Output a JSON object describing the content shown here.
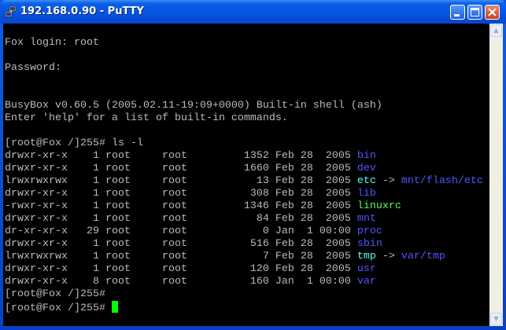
{
  "window": {
    "title": "192.168.0.90 - PuTTY"
  },
  "colors": {
    "default": "#bbbbbb",
    "dir": "#5555ff",
    "link": "#55ffff",
    "exec": "#55ff55",
    "cursor": "#00ff00"
  },
  "terminal": {
    "lines": [
      [],
      [
        {
          "t": "Fox login: root"
        }
      ],
      [],
      [
        {
          "t": "Password:"
        }
      ],
      [],
      [],
      [
        {
          "t": "BusyBox v0.60.5 (2005.02.11-19:09+0000) Built-in shell (ash)"
        }
      ],
      [
        {
          "t": "Enter 'help' for a list of built-in commands."
        }
      ],
      [],
      [
        {
          "t": "[root@Fox /]255# ls -l"
        }
      ],
      [
        {
          "t": "drwxr-xr-x    1 root     root         1352 Feb 28  2005 "
        },
        {
          "t": "bin",
          "c": "dir"
        }
      ],
      [
        {
          "t": "drwxr-xr-x    1 root     root         1660 Feb 28  2005 "
        },
        {
          "t": "dev",
          "c": "dir"
        }
      ],
      [
        {
          "t": "lrwxrwxrwx    1 root     root           13 Feb 28  2005 "
        },
        {
          "t": "etc",
          "c": "link"
        },
        {
          "t": " -> "
        },
        {
          "t": "mnt/flash/etc",
          "c": "dir"
        }
      ],
      [
        {
          "t": "drwxr-xr-x    1 root     root          308 Feb 28  2005 "
        },
        {
          "t": "lib",
          "c": "dir"
        }
      ],
      [
        {
          "t": "-rwxr-xr-x    1 root     root         1346 Feb 28  2005 "
        },
        {
          "t": "linuxrc",
          "c": "exec"
        }
      ],
      [
        {
          "t": "drwxr-xr-x    1 root     root           84 Feb 28  2005 "
        },
        {
          "t": "mnt",
          "c": "dir"
        }
      ],
      [
        {
          "t": "dr-xr-xr-x   29 root     root            0 Jan  1 00:00 "
        },
        {
          "t": "proc",
          "c": "dir"
        }
      ],
      [
        {
          "t": "drwxr-xr-x    1 root     root          516 Feb 28  2005 "
        },
        {
          "t": "sbin",
          "c": "dir"
        }
      ],
      [
        {
          "t": "lrwxrwxrwx    1 root     root            7 Feb 28  2005 "
        },
        {
          "t": "tmp",
          "c": "link"
        },
        {
          "t": " -> "
        },
        {
          "t": "var/tmp",
          "c": "dir"
        }
      ],
      [
        {
          "t": "drwxr-xr-x    1 root     root          120 Feb 28  2005 "
        },
        {
          "t": "usr",
          "c": "dir"
        }
      ],
      [
        {
          "t": "drwxr-xr-x    8 root     root          160 Jan  1 00:00 "
        },
        {
          "t": "var",
          "c": "dir"
        }
      ],
      [
        {
          "t": "[root@Fox /]255#"
        }
      ],
      [
        {
          "t": "[root@Fox /]255# "
        },
        {
          "cursor": true
        }
      ]
    ]
  }
}
